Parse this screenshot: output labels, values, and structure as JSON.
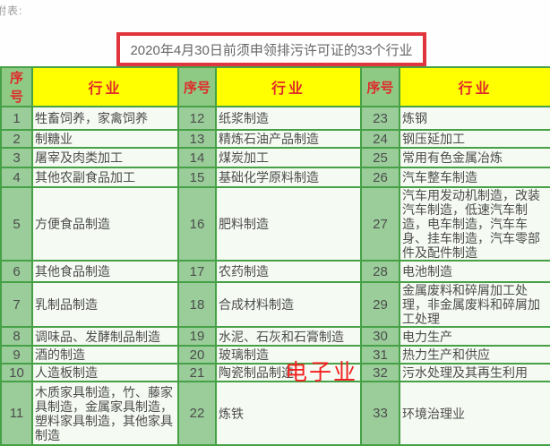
{
  "page": {
    "corner_label": "附表:"
  },
  "title": {
    "text": "2020年4月30日前须申领排污许可证的33个行业"
  },
  "colors": {
    "title_border": "#e0353c",
    "header_text": "#e02a2a",
    "industry_header_bg": "#ffff00",
    "seq_header_bg": "#8fca84",
    "seq_cell_bg": "#9acd9a",
    "industry_cell_bg": "#f5faf2",
    "grid_line": "#46a046",
    "watermark_red": "#f41f1f"
  },
  "table": {
    "seq_header": "序号",
    "industry_header": "行业",
    "rows": [
      {
        "cols": [
          [
            "1",
            "牲畜饲养，家禽饲养"
          ],
          [
            "12",
            "纸浆制造"
          ],
          [
            "23",
            "炼钢"
          ]
        ]
      },
      {
        "cols": [
          [
            "2",
            "制糖业"
          ],
          [
            "13",
            "精炼石油产品制造"
          ],
          [
            "24",
            "钢压延加工"
          ]
        ]
      },
      {
        "cols": [
          [
            "3",
            "屠宰及肉类加工"
          ],
          [
            "14",
            "煤炭加工"
          ],
          [
            "25",
            "常用有色金属冶炼"
          ]
        ]
      },
      {
        "cols": [
          [
            "4",
            "其他农副食品加工"
          ],
          [
            "15",
            "基础化学原料制造"
          ],
          [
            "26",
            "汽车整车制造"
          ]
        ]
      },
      {
        "cols": [
          [
            "5",
            "方便食品制造"
          ],
          [
            "16",
            "肥料制造"
          ],
          [
            "27",
            "汽车用发动机制造，改装汽车制造，低速汽车制造，电车制造，汽车车身、挂车制造，汽车零部件及配件制造"
          ]
        ]
      },
      {
        "cols": [
          [
            "6",
            "其他食品制造"
          ],
          [
            "17",
            "农药制造"
          ],
          [
            "28",
            "电池制造"
          ]
        ]
      },
      {
        "cols": [
          [
            "7",
            "乳制品制造"
          ],
          [
            "18",
            "合成材料制造"
          ],
          [
            "29",
            "金属废料和碎屑加工处理，非金属废料和碎屑加工处理"
          ]
        ]
      },
      {
        "cols": [
          [
            "8",
            "调味品、发酵制品制造"
          ],
          [
            "19",
            "水泥、石灰和石膏制造"
          ],
          [
            "30",
            "电力生产"
          ]
        ]
      },
      {
        "cols": [
          [
            "9",
            "酒的制造"
          ],
          [
            "20",
            "玻璃制造"
          ],
          [
            "31",
            "热力生产和供应"
          ]
        ]
      },
      {
        "cols": [
          [
            "10",
            "人造板制造"
          ],
          [
            "21",
            "陶瓷制品制造"
          ],
          [
            "32",
            "污水处理及其再生利用"
          ]
        ]
      },
      {
        "cols": [
          [
            "11",
            "木质家具制造，竹、藤家具制造，金属家具制造，塑料家具制造，其他家具制造"
          ],
          [
            "22",
            "炼铁"
          ],
          [
            "33",
            "环境治理业"
          ]
        ]
      }
    ]
  },
  "overlay": {
    "red_watermark": "电子业"
  }
}
